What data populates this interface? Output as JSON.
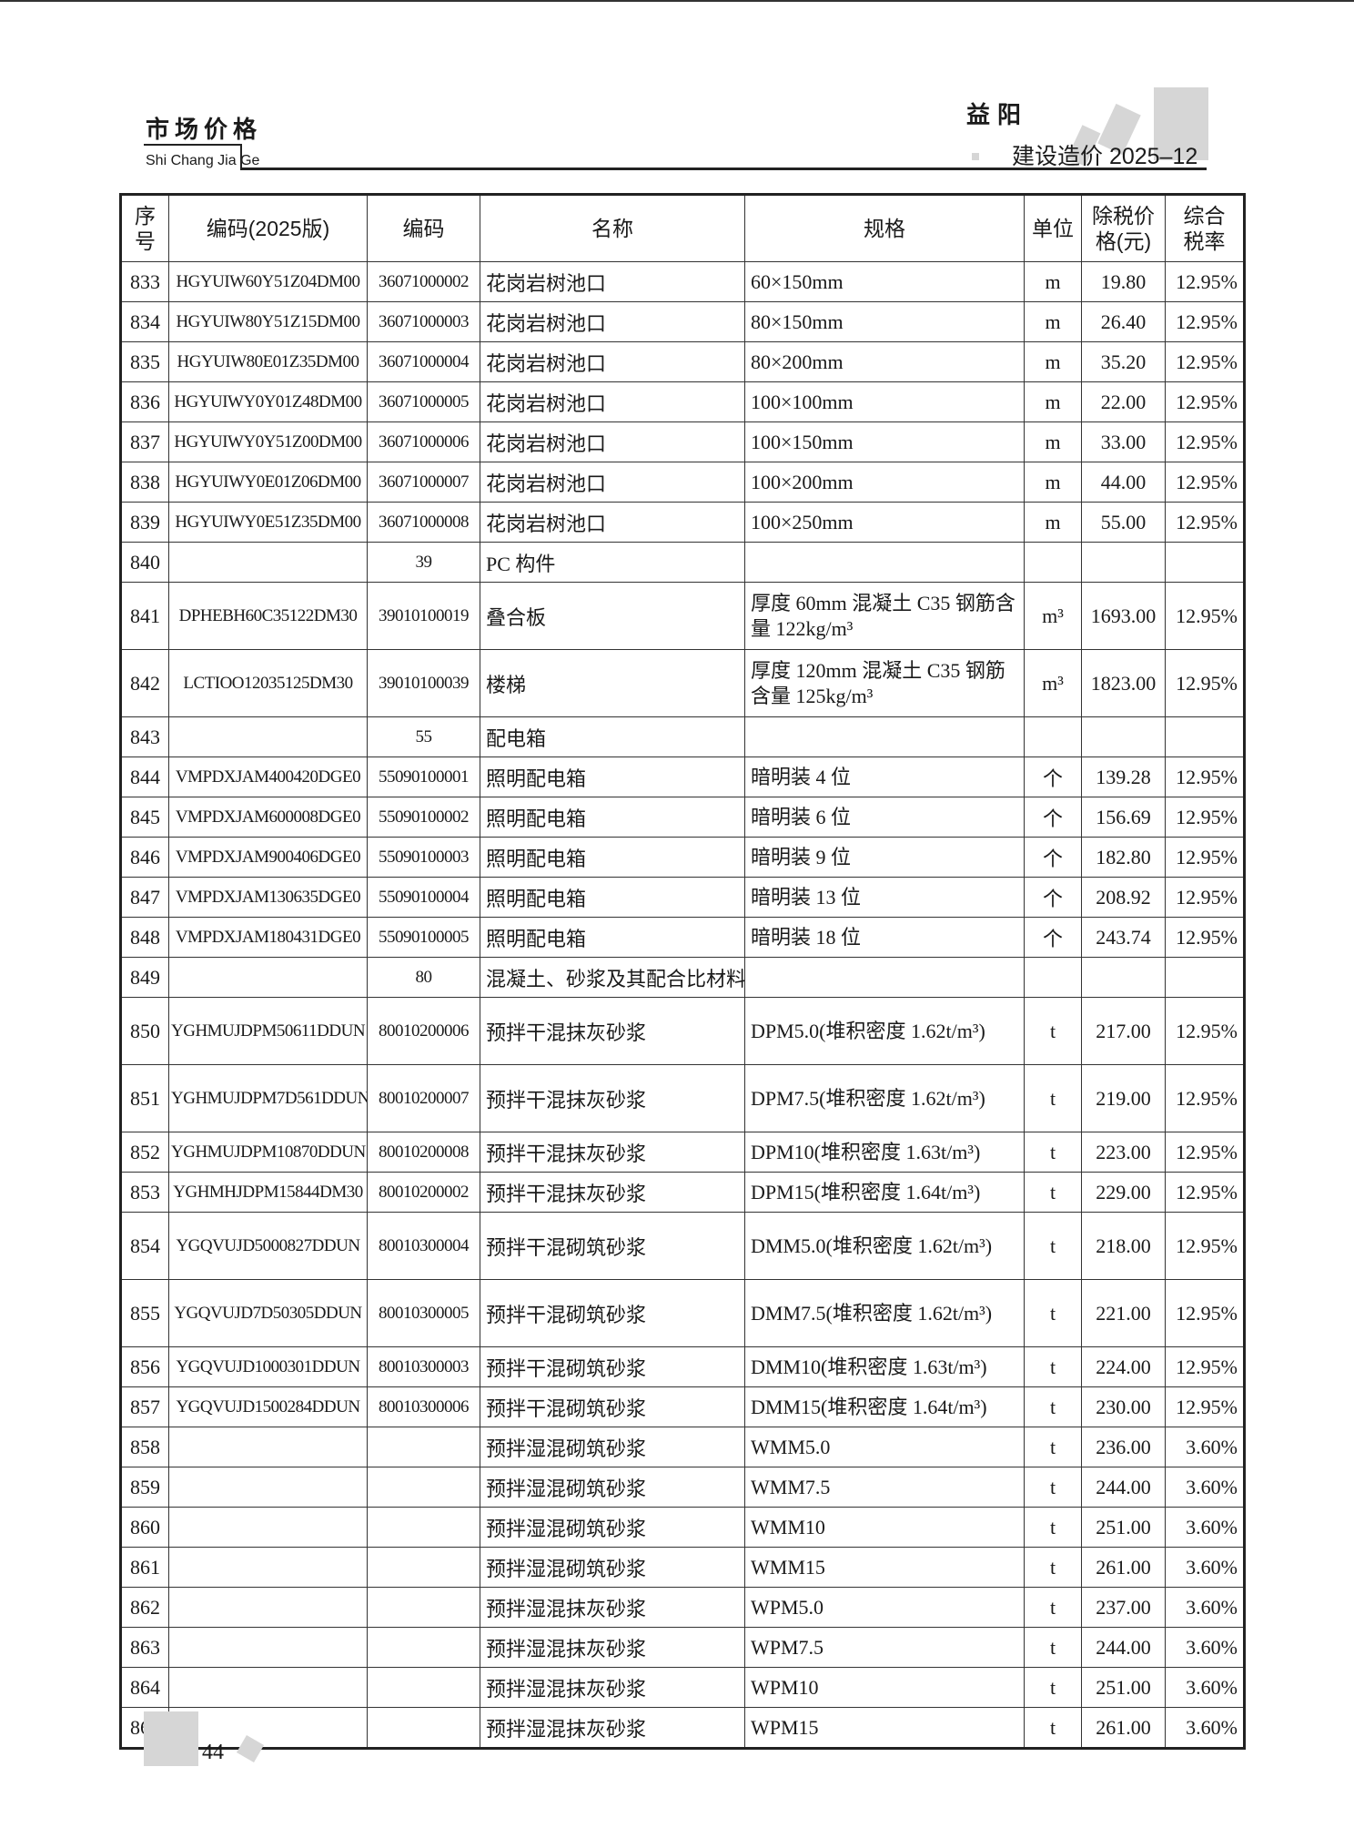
{
  "header": {
    "section_title": "市场价格",
    "section_pinyin": "Shi Chang Jia Ge",
    "city": "益阳",
    "issue": "建设造价 2025–12"
  },
  "table": {
    "columns": [
      "序号",
      "编码(2025版)",
      "编码",
      "名称",
      "规格",
      "单位",
      "除税价格(元)",
      "综合税率"
    ],
    "rows": [
      {
        "no": "833",
        "code2025": "HGYUIW60Y51Z04DM00",
        "code": "36071000002",
        "name": "花岗岩树池口",
        "spec": "60×150mm",
        "unit": "m",
        "price": "19.80",
        "tax": "12.95%"
      },
      {
        "no": "834",
        "code2025": "HGYUIW80Y51Z15DM00",
        "code": "36071000003",
        "name": "花岗岩树池口",
        "spec": "80×150mm",
        "unit": "m",
        "price": "26.40",
        "tax": "12.95%"
      },
      {
        "no": "835",
        "code2025": "HGYUIW80E01Z35DM00",
        "code": "36071000004",
        "name": "花岗岩树池口",
        "spec": "80×200mm",
        "unit": "m",
        "price": "35.20",
        "tax": "12.95%"
      },
      {
        "no": "836",
        "code2025": "HGYUIWY0Y01Z48DM00",
        "code": "36071000005",
        "name": "花岗岩树池口",
        "spec": "100×100mm",
        "unit": "m",
        "price": "22.00",
        "tax": "12.95%"
      },
      {
        "no": "837",
        "code2025": "HGYUIWY0Y51Z00DM00",
        "code": "36071000006",
        "name": "花岗岩树池口",
        "spec": "100×150mm",
        "unit": "m",
        "price": "33.00",
        "tax": "12.95%"
      },
      {
        "no": "838",
        "code2025": "HGYUIWY0E01Z06DM00",
        "code": "36071000007",
        "name": "花岗岩树池口",
        "spec": "100×200mm",
        "unit": "m",
        "price": "44.00",
        "tax": "12.95%"
      },
      {
        "no": "839",
        "code2025": "HGYUIWY0E51Z35DM00",
        "code": "36071000008",
        "name": "花岗岩树池口",
        "spec": "100×250mm",
        "unit": "m",
        "price": "55.00",
        "tax": "12.95%"
      },
      {
        "no": "840",
        "code2025": "",
        "code": "39",
        "name": "PC 构件",
        "spec": "",
        "unit": "",
        "price": "",
        "tax": ""
      },
      {
        "no": "841",
        "code2025": "DPHEBH60C35122DM30",
        "code": "39010100019",
        "name": "叠合板",
        "spec": "厚度 60mm 混凝土 C35 钢筋含量 122kg/m³",
        "unit": "m³",
        "price": "1693.00",
        "tax": "12.95%"
      },
      {
        "no": "842",
        "code2025": "LCTIOO12035125DM30",
        "code": "39010100039",
        "name": "楼梯",
        "spec": "厚度 120mm 混凝土 C35 钢筋含量 125kg/m³",
        "unit": "m³",
        "price": "1823.00",
        "tax": "12.95%"
      },
      {
        "no": "843",
        "code2025": "",
        "code": "55",
        "name": "配电箱",
        "spec": "",
        "unit": "",
        "price": "",
        "tax": ""
      },
      {
        "no": "844",
        "code2025": "VMPDXJAM400420DGE0",
        "code": "55090100001",
        "name": "照明配电箱",
        "spec": "暗明装 4 位",
        "unit": "个",
        "price": "139.28",
        "tax": "12.95%"
      },
      {
        "no": "845",
        "code2025": "VMPDXJAM600008DGE0",
        "code": "55090100002",
        "name": "照明配电箱",
        "spec": "暗明装 6 位",
        "unit": "个",
        "price": "156.69",
        "tax": "12.95%"
      },
      {
        "no": "846",
        "code2025": "VMPDXJAM900406DGE0",
        "code": "55090100003",
        "name": "照明配电箱",
        "spec": "暗明装 9 位",
        "unit": "个",
        "price": "182.80",
        "tax": "12.95%"
      },
      {
        "no": "847",
        "code2025": "VMPDXJAM130635DGE0",
        "code": "55090100004",
        "name": "照明配电箱",
        "spec": "暗明装 13 位",
        "unit": "个",
        "price": "208.92",
        "tax": "12.95%"
      },
      {
        "no": "848",
        "code2025": "VMPDXJAM180431DGE0",
        "code": "55090100005",
        "name": "照明配电箱",
        "spec": "暗明装 18 位",
        "unit": "个",
        "price": "243.74",
        "tax": "12.95%"
      },
      {
        "no": "849",
        "code2025": "",
        "code": "80",
        "name": "混凝土、砂浆及其配合比材料",
        "spec": "",
        "unit": "",
        "price": "",
        "tax": ""
      },
      {
        "no": "850",
        "code2025": "YGHMUJDPM50611DDUN",
        "code": "80010200006",
        "name": "预拌干混抹灰砂浆",
        "spec": "DPM5.0(堆积密度 1.62t/m³)",
        "unit": "t",
        "price": "217.00",
        "tax": "12.95%"
      },
      {
        "no": "851",
        "code2025": "YGHMUJDPM7D561DDUN",
        "code": "80010200007",
        "name": "预拌干混抹灰砂浆",
        "spec": "DPM7.5(堆积密度 1.62t/m³)",
        "unit": "t",
        "price": "219.00",
        "tax": "12.95%"
      },
      {
        "no": "852",
        "code2025": "YGHMUJDPM10870DDUN",
        "code": "80010200008",
        "name": "预拌干混抹灰砂浆",
        "spec": "DPM10(堆积密度 1.63t/m³)",
        "unit": "t",
        "price": "223.00",
        "tax": "12.95%"
      },
      {
        "no": "853",
        "code2025": "YGHMHJDPM15844DM30",
        "code": "80010200002",
        "name": "预拌干混抹灰砂浆",
        "spec": "DPM15(堆积密度 1.64t/m³)",
        "unit": "t",
        "price": "229.00",
        "tax": "12.95%"
      },
      {
        "no": "854",
        "code2025": "YGQVUJD5000827DDUN",
        "code": "80010300004",
        "name": "预拌干混砌筑砂浆",
        "spec": "DMM5.0(堆积密度 1.62t/m³)",
        "unit": "t",
        "price": "218.00",
        "tax": "12.95%"
      },
      {
        "no": "855",
        "code2025": "YGQVUJD7D50305DDUN",
        "code": "80010300005",
        "name": "预拌干混砌筑砂浆",
        "spec": "DMM7.5(堆积密度 1.62t/m³)",
        "unit": "t",
        "price": "221.00",
        "tax": "12.95%"
      },
      {
        "no": "856",
        "code2025": "YGQVUJD1000301DDUN",
        "code": "80010300003",
        "name": "预拌干混砌筑砂浆",
        "spec": "DMM10(堆积密度 1.63t/m³)",
        "unit": "t",
        "price": "224.00",
        "tax": "12.95%"
      },
      {
        "no": "857",
        "code2025": "YGQVUJD1500284DDUN",
        "code": "80010300006",
        "name": "预拌干混砌筑砂浆",
        "spec": "DMM15(堆积密度 1.64t/m³)",
        "unit": "t",
        "price": "230.00",
        "tax": "12.95%"
      },
      {
        "no": "858",
        "code2025": "",
        "code": "",
        "name": "预拌湿混砌筑砂浆",
        "spec": "WMM5.0",
        "unit": "t",
        "price": "236.00",
        "tax": "3.60%"
      },
      {
        "no": "859",
        "code2025": "",
        "code": "",
        "name": "预拌湿混砌筑砂浆",
        "spec": "WMM7.5",
        "unit": "t",
        "price": "244.00",
        "tax": "3.60%"
      },
      {
        "no": "860",
        "code2025": "",
        "code": "",
        "name": "预拌湿混砌筑砂浆",
        "spec": "WMM10",
        "unit": "t",
        "price": "251.00",
        "tax": "3.60%"
      },
      {
        "no": "861",
        "code2025": "",
        "code": "",
        "name": "预拌湿混砌筑砂浆",
        "spec": "WMM15",
        "unit": "t",
        "price": "261.00",
        "tax": "3.60%"
      },
      {
        "no": "862",
        "code2025": "",
        "code": "",
        "name": "预拌湿混抹灰砂浆",
        "spec": "WPM5.0",
        "unit": "t",
        "price": "237.00",
        "tax": "3.60%"
      },
      {
        "no": "863",
        "code2025": "",
        "code": "",
        "name": "预拌湿混抹灰砂浆",
        "spec": "WPM7.5",
        "unit": "t",
        "price": "244.00",
        "tax": "3.60%"
      },
      {
        "no": "864",
        "code2025": "",
        "code": "",
        "name": "预拌湿混抹灰砂浆",
        "spec": "WPM10",
        "unit": "t",
        "price": "251.00",
        "tax": "3.60%"
      },
      {
        "no": "865",
        "code2025": "",
        "code": "",
        "name": "预拌湿混抹灰砂浆",
        "spec": "WPM15",
        "unit": "t",
        "price": "261.00",
        "tax": "3.60%"
      }
    ]
  },
  "footer": {
    "page_number": "44"
  }
}
